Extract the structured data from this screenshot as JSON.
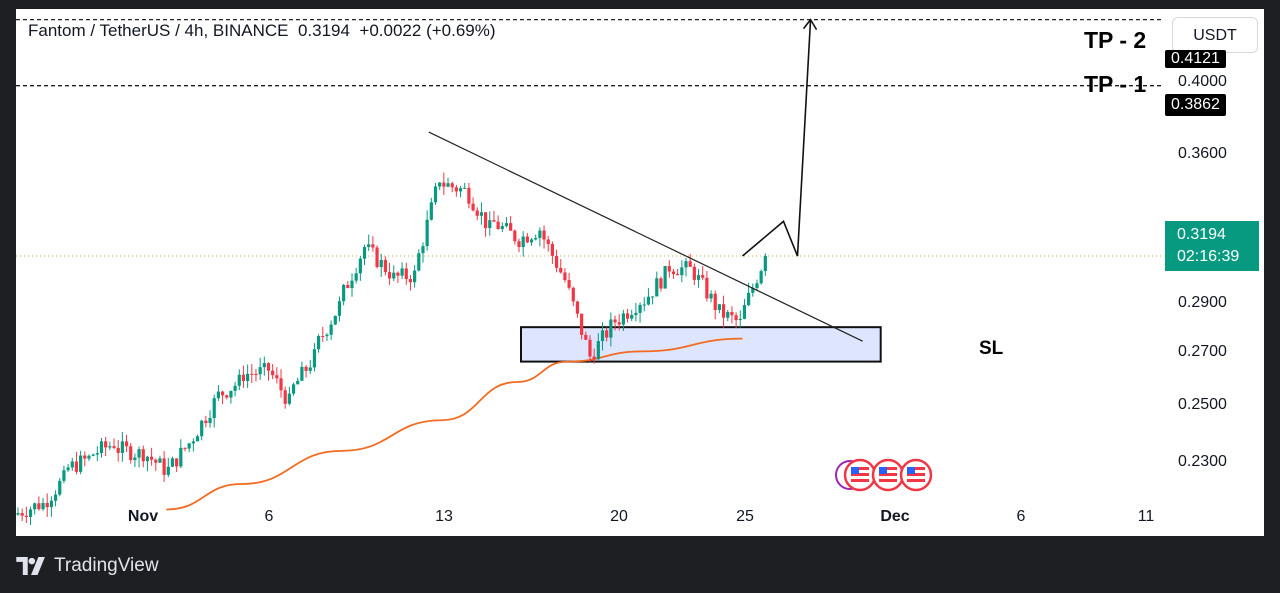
{
  "header": {
    "symbol": "Fantom / TetherUS",
    "interval": "4h",
    "exchange": "BINANCE",
    "last_price": "0.3194",
    "change": "+0.0022",
    "change_pct": "(+0.69%)"
  },
  "currency_button": "USDT",
  "annotations": {
    "tp2": "TP - 2",
    "tp1": "TP - 1",
    "sl": "SL"
  },
  "price_axis": {
    "ticks": [
      "0.3600",
      "0.2900",
      "0.2700",
      "0.2500",
      "0.2300"
    ],
    "tp1_extra_tick": "0.4000",
    "tp2_badge": "0.4121",
    "tp1_badge": "0.3862",
    "current_badge_price": "0.3194",
    "current_badge_countdown": "02:16:39"
  },
  "time_axis": {
    "labels": [
      "Nov",
      "6",
      "13",
      "20",
      "25",
      "Dec",
      "6",
      "11"
    ],
    "bold": [
      true,
      false,
      false,
      false,
      false,
      true,
      false,
      false
    ]
  },
  "colors": {
    "up_candle": "#089981",
    "down_candle": "#f23645",
    "moving_average": "#f26b22",
    "zone_fill": "#dde5ff",
    "current_price_line": "#c9b24a"
  },
  "footer": {
    "brand": "TradingView"
  },
  "chart_data": {
    "type": "candlestick",
    "symbol": "Fantom / TetherUS",
    "interval": "4h",
    "last_price": 0.3194,
    "horizontal_levels": [
      {
        "name": "TP - 2",
        "value": 0.4121
      },
      {
        "name": "TP - 1",
        "value": 0.3862
      }
    ],
    "support_zone": {
      "name": "SL",
      "from": 0.278,
      "to": 0.2915
    },
    "close_series": [
      {
        "date": "2023-10-31",
        "close": 0.222
      },
      {
        "date": "2023-11-01",
        "close": 0.232
      },
      {
        "date": "2023-11-02",
        "close": 0.24
      },
      {
        "date": "2023-11-03",
        "close": 0.246
      },
      {
        "date": "2023-11-04",
        "close": 0.242
      },
      {
        "date": "2023-11-05",
        "close": 0.236
      },
      {
        "date": "2023-11-06",
        "close": 0.246
      },
      {
        "date": "2023-11-07",
        "close": 0.262
      },
      {
        "date": "2023-11-08",
        "close": 0.27
      },
      {
        "date": "2023-11-09",
        "close": 0.274
      },
      {
        "date": "2023-11-10",
        "close": 0.262
      },
      {
        "date": "2023-11-11",
        "close": 0.28
      },
      {
        "date": "2023-11-12",
        "close": 0.3
      },
      {
        "date": "2023-11-13",
        "close": 0.323
      },
      {
        "date": "2023-11-14",
        "close": 0.313
      },
      {
        "date": "2023-11-15",
        "close": 0.312
      },
      {
        "date": "2023-11-16",
        "close": 0.35
      },
      {
        "date": "2023-11-17",
        "close": 0.345
      },
      {
        "date": "2023-11-18",
        "close": 0.33
      },
      {
        "date": "2023-11-19",
        "close": 0.327
      },
      {
        "date": "2023-11-20",
        "close": 0.33
      },
      {
        "date": "2023-11-21",
        "close": 0.31
      },
      {
        "date": "2023-11-22",
        "close": 0.28
      },
      {
        "date": "2023-11-23",
        "close": 0.294
      },
      {
        "date": "2023-11-24",
        "close": 0.302
      },
      {
        "date": "2023-11-25",
        "close": 0.312
      },
      {
        "date": "2023-11-26",
        "close": 0.314
      },
      {
        "date": "2023-11-27",
        "close": 0.3
      },
      {
        "date": "2023-11-28",
        "close": 0.293
      },
      {
        "date": "2023-11-29",
        "close": 0.3194
      }
    ],
    "moving_average": [
      {
        "date": "2023-11-06",
        "value": 0.22
      },
      {
        "date": "2023-11-09",
        "value": 0.23
      },
      {
        "date": "2023-11-13",
        "value": 0.243
      },
      {
        "date": "2023-11-17",
        "value": 0.255
      },
      {
        "date": "2023-11-20",
        "value": 0.27
      },
      {
        "date": "2023-11-22",
        "value": 0.278
      },
      {
        "date": "2023-11-25",
        "value": 0.282
      },
      {
        "date": "2023-11-29",
        "value": 0.287
      }
    ],
    "trendline": [
      {
        "date": "2023-11-16",
        "value": 0.368
      },
      {
        "date": "2023-12-03",
        "value": 0.286
      }
    ],
    "projection_path": [
      {
        "date": "2023-11-29",
        "value": 0.3194
      },
      {
        "date": "2023-11-30",
        "value": 0.333
      },
      {
        "date": "2023-11-30",
        "value": 0.3194
      },
      {
        "date": "2023-12-01",
        "value": 0.4121
      }
    ],
    "x_range": [
      "2023-10-31",
      "2023-12-11"
    ],
    "y_range": [
      0.218,
      0.424
    ],
    "grid": false
  }
}
